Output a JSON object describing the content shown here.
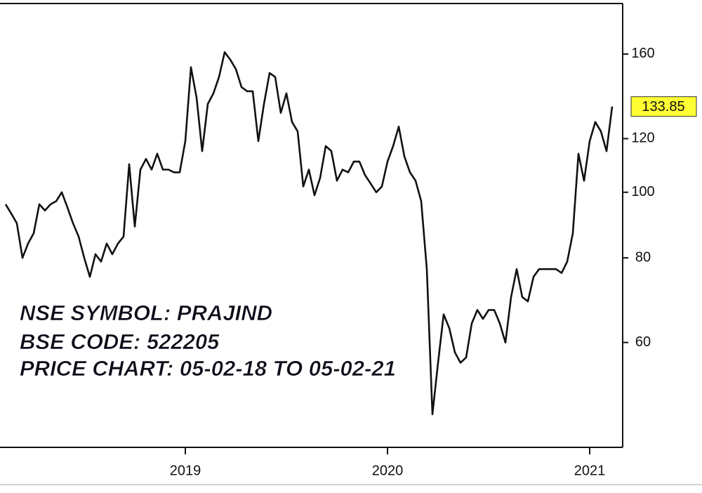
{
  "chart_data": {
    "type": "line",
    "annotations": [
      "NSE SYMBOL: PRAJIND",
      "BSE CODE: 522205",
      "PRICE CHART: 05-02-18 TO 05-02-21"
    ],
    "categories": [
      null,
      null,
      null,
      null,
      null,
      null,
      null,
      null,
      null,
      null,
      null,
      null,
      null,
      null,
      null,
      null,
      null,
      null,
      null,
      null,
      null,
      null,
      null,
      null,
      null,
      null,
      null,
      null,
      null,
      null,
      null,
      null,
      "2019",
      null,
      null,
      null,
      null,
      null,
      null,
      null,
      null,
      null,
      null,
      null,
      null,
      null,
      null,
      null,
      null,
      null,
      null,
      null,
      null,
      null,
      null,
      null,
      null,
      null,
      null,
      null,
      null,
      null,
      null,
      null,
      null,
      null,
      null,
      null,
      "2020",
      null,
      null,
      null,
      null,
      null,
      null,
      null,
      null,
      null,
      null,
      null,
      null,
      null,
      null,
      null,
      null,
      null,
      null,
      null,
      null,
      null,
      null,
      null,
      null,
      null,
      null,
      null,
      null,
      null,
      null,
      null,
      null,
      null,
      null,
      null,
      "2021",
      null,
      null,
      null,
      null
    ],
    "values": [
      96,
      93,
      90,
      80,
      84,
      87,
      96,
      94,
      96,
      97,
      100,
      95,
      90,
      86,
      80,
      75,
      81,
      79,
      84,
      81,
      84,
      86,
      110,
      89,
      108,
      112,
      108,
      114,
      108,
      108,
      107,
      107,
      119,
      153,
      138,
      115,
      135,
      140,
      148,
      161,
      157,
      152,
      143,
      141,
      141,
      119,
      135,
      150,
      148,
      131,
      140,
      127,
      123,
      102,
      108,
      99,
      105,
      117,
      115,
      104,
      108,
      107,
      111,
      111,
      106,
      103,
      100,
      102,
      111,
      117,
      125,
      113,
      107,
      104,
      97,
      77,
      47,
      56,
      66,
      63,
      58,
      56,
      57,
      64,
      67,
      65,
      67,
      67,
      64,
      60,
      70,
      77,
      70,
      69,
      75,
      77,
      77,
      77,
      77,
      76,
      79,
      87,
      114,
      104,
      119,
      127,
      123,
      115,
      133.85
    ],
    "value_labels": [
      null,
      null,
      null,
      null,
      null,
      null,
      null,
      null,
      null,
      null,
      null,
      null,
      null,
      null,
      null,
      null,
      null,
      null,
      null,
      null,
      null,
      null,
      null,
      null,
      null,
      null,
      null,
      null,
      null,
      null,
      null,
      null,
      null,
      null,
      null,
      null,
      null,
      null,
      null,
      null,
      null,
      null,
      null,
      null,
      null,
      null,
      null,
      null,
      null,
      null,
      null,
      null,
      null,
      null,
      null,
      null,
      null,
      null,
      null,
      null,
      null,
      null,
      null,
      null,
      null,
      null,
      null,
      null,
      null,
      null,
      null,
      null,
      null,
      null,
      null,
      null,
      null,
      null,
      null,
      null,
      null,
      null,
      null,
      null,
      null,
      null,
      null,
      null,
      null,
      null,
      null,
      null,
      null,
      null,
      null,
      null,
      null,
      null,
      null,
      null,
      null,
      null,
      null,
      null,
      null,
      null,
      null,
      null,
      "133.85"
    ],
    "color": "#111111",
    "label_color": "#ffff33",
    "ylim": [
      42,
      190
    ],
    "yticks": [
      60,
      80,
      100,
      120,
      160
    ],
    "log_y": true
  }
}
